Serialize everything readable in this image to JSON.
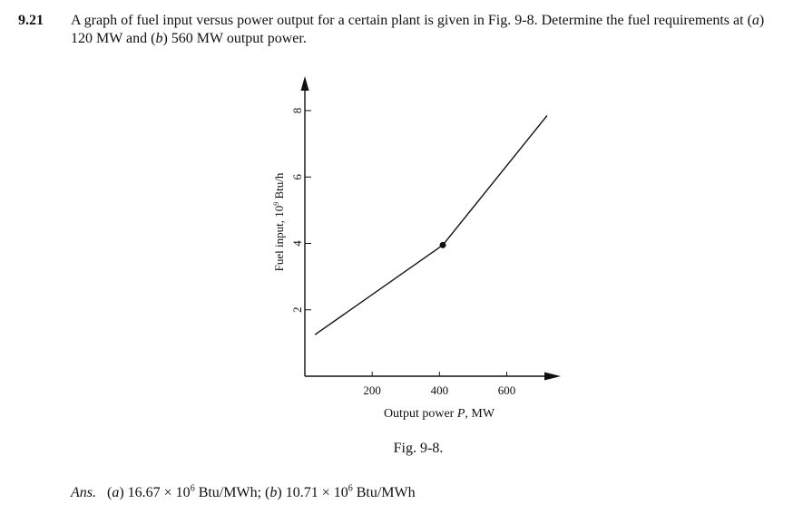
{
  "problem": {
    "number": "9.21",
    "text_1": "A graph of fuel input versus power output for a certain plant is given in Fig. 9-8. Determine the fuel requirements at (",
    "part_a_letter": "a",
    "text_2": ") 120 MW and (",
    "part_b_letter": "b",
    "text_3": ") 560 MW output power."
  },
  "figure": {
    "caption": "Fig. 9-8."
  },
  "chart_data": {
    "type": "line",
    "xlabel_prefix": "Output power ",
    "xlabel_var": "P",
    "xlabel_unit": ", MW",
    "ylabel": "Fuel input, 10",
    "ylabel_exp": "9",
    "ylabel_unit": " Btu/h",
    "x_ticks": [
      200,
      400,
      600
    ],
    "y_ticks": [
      2,
      4,
      6,
      8
    ],
    "xlim": [
      0,
      760
    ],
    "ylim": [
      0,
      9
    ],
    "series": [
      {
        "points": [
          [
            30,
            1.25
          ],
          [
            410,
            3.95
          ]
        ]
      },
      {
        "points": [
          [
            410,
            3.95
          ],
          [
            720,
            7.85
          ]
        ]
      }
    ],
    "marker": {
      "x": 410,
      "y": 3.95
    }
  },
  "answer": {
    "label": "Ans.",
    "a_open": "(",
    "a_letter": "a",
    "a_close": ")",
    "a_value": " 16.67 × 10",
    "a_exp": "6",
    "a_unit": " Btu/MWh; (",
    "b_letter": "b",
    "b_close": ")",
    "b_value": " 10.71 × 10",
    "b_exp": "6",
    "b_unit": " Btu/MWh"
  }
}
